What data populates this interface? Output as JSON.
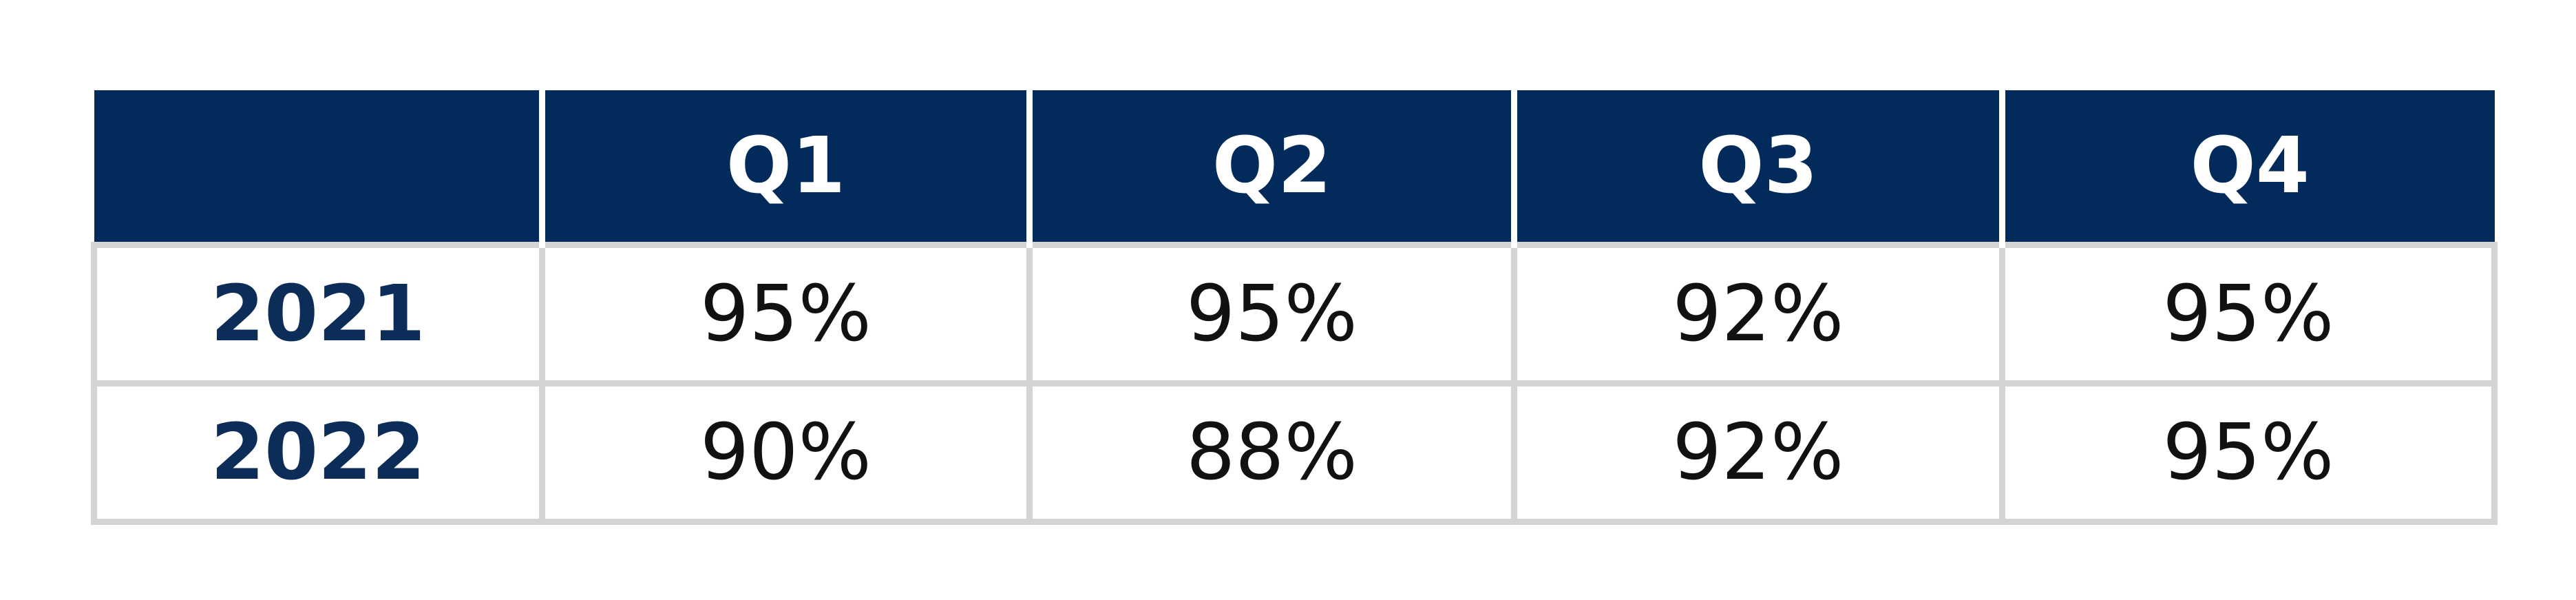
{
  "table": {
    "header": [
      "Q1",
      "Q2",
      "Q3",
      "Q4"
    ],
    "rows": [
      {
        "label": "2021",
        "cells": [
          "95%",
          "95%",
          "92%",
          "95%"
        ]
      },
      {
        "label": "2022",
        "cells": [
          "90%",
          "88%",
          "92%",
          "95%"
        ]
      }
    ]
  }
}
